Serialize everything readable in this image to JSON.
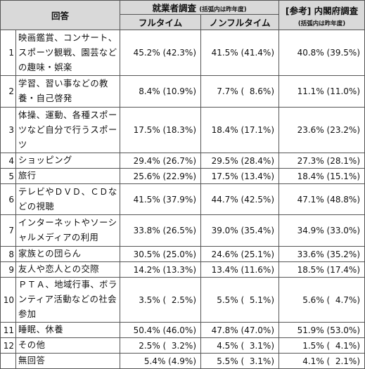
{
  "header": {
    "answer": "回答",
    "survey_title": "就業者調査",
    "survey_note": "(括弧内は昨年度)",
    "fulltime": "フルタイム",
    "nonfulltime": "ノンフルタイム",
    "ref_title": "[参考] 内閣府調査",
    "ref_note": "(括弧内は昨年度)"
  },
  "rows": [
    {
      "no": "1",
      "label": "映画鑑賞、コンサート、スポーツ観戦、園芸などの趣味・娯楽",
      "full": "45.2% (42.3%)",
      "nonfull": "41.5% (41.4%)",
      "ref": "40.8% (39.5%)"
    },
    {
      "no": "2",
      "label": "学習、習い事などの教養・自己啓発",
      "full": "8.4% (10.9%)",
      "nonfull": "7.7% (  8.6%)",
      "ref": "11.1% (11.0%)"
    },
    {
      "no": "3",
      "label": "体操、運動、各種スポーツなど自分で行うスポーツ",
      "full": "17.5% (18.3%)",
      "nonfull": "18.4% (17.1%)",
      "ref": "23.6% (23.2%)"
    },
    {
      "no": "4",
      "label": "ショッピング",
      "full": "29.4% (26.7%)",
      "nonfull": "29.5% (28.4%)",
      "ref": "27.3% (28.1%)"
    },
    {
      "no": "5",
      "label": "旅行",
      "full": "25.6% (22.9%)",
      "nonfull": "17.5% (13.4%)",
      "ref": "18.4% (15.1%)"
    },
    {
      "no": "6",
      "label": "テレビやＤＶＤ、ＣＤなどの視聴",
      "full": "41.5% (37.9%)",
      "nonfull": "44.7% (42.5%)",
      "ref": "47.1% (48.8%)"
    },
    {
      "no": "7",
      "label": "インターネットやソーシャルメディアの利用",
      "full": "33.8% (26.5%)",
      "nonfull": "39.0% (35.4%)",
      "ref": "34.9% (33.0%)"
    },
    {
      "no": "8",
      "label": "家族との団らん",
      "full": "30.5% (25.0%)",
      "nonfull": "24.6% (25.1%)",
      "ref": "33.6% (35.2%)"
    },
    {
      "no": "9",
      "label": "友人や恋人との交際",
      "full": "14.2% (13.3%)",
      "nonfull": "13.4% (11.6%)",
      "ref": "18.5% (17.4%)"
    },
    {
      "no": "10",
      "label": "ＰＴＡ、地域行事、ボランティア活動などの社会参加",
      "full": "3.5% (  2.5%)",
      "nonfull": "5.5% (  5.1%)",
      "ref": "5.6% (  4.7%)"
    },
    {
      "no": "11",
      "label": "睡眠、休養",
      "full": "50.4% (46.0%)",
      "nonfull": "47.8% (47.0%)",
      "ref": "51.9% (53.0%)"
    },
    {
      "no": "12",
      "label": "その他",
      "full": "2.5% (  3.2%)",
      "nonfull": "4.5% (  3.1%)",
      "ref": "1.5% (  4.1%)"
    },
    {
      "label": "無回答",
      "full": "5.4% (4.9%)",
      "nonfull": "5.5% (  3.1%)",
      "ref": "4.1% (  2.1%)"
    }
  ]
}
